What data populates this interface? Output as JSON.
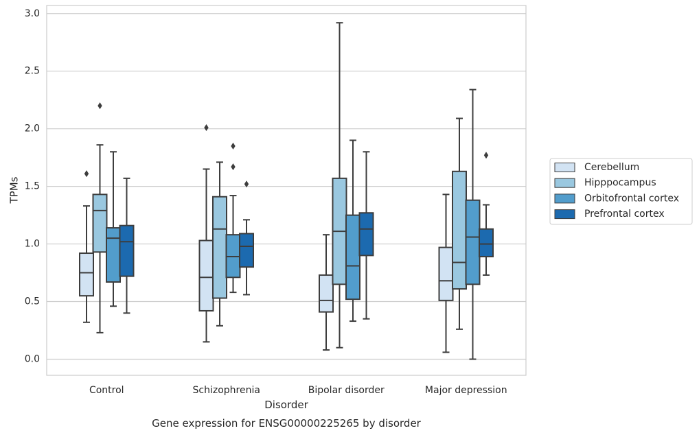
{
  "chart_data": {
    "type": "box",
    "title": "",
    "caption": "Gene expression for ENSG00000225265 by disorder",
    "xlabel": "Disorder",
    "ylabel": "TPMs",
    "ylim": [
      -0.14,
      3.07
    ],
    "yticks": [
      "0.0",
      "0.5",
      "1.0",
      "1.5",
      "2.0",
      "2.5",
      "3.0"
    ],
    "grid": "horizontal",
    "legend_position": "right, outside plot",
    "categories": [
      "Control",
      "Schizophrenia",
      "Bipolar disorder",
      "Major depression"
    ],
    "series": [
      {
        "name": "Cerebellum",
        "color": "#d2e3f3",
        "boxes": [
          {
            "whislo": 0.32,
            "q1": 0.55,
            "med": 0.75,
            "q3": 0.92,
            "whishi": 1.33,
            "fliers": [
              1.61
            ]
          },
          {
            "whislo": 0.15,
            "q1": 0.42,
            "med": 0.71,
            "q3": 1.03,
            "whishi": 1.65,
            "fliers": [
              2.01
            ]
          },
          {
            "whislo": 0.08,
            "q1": 0.41,
            "med": 0.51,
            "q3": 0.73,
            "whishi": 1.08,
            "fliers": []
          },
          {
            "whislo": 0.06,
            "q1": 0.51,
            "med": 0.68,
            "q3": 0.97,
            "whishi": 1.43,
            "fliers": []
          }
        ]
      },
      {
        "name": "Hipppocampus",
        "color": "#9ac8e0",
        "boxes": [
          {
            "whislo": 0.23,
            "q1": 0.93,
            "med": 1.29,
            "q3": 1.43,
            "whishi": 1.86,
            "fliers": [
              2.2
            ]
          },
          {
            "whislo": 0.29,
            "q1": 0.53,
            "med": 1.13,
            "q3": 1.41,
            "whishi": 1.71,
            "fliers": []
          },
          {
            "whislo": 0.1,
            "q1": 0.65,
            "med": 1.11,
            "q3": 1.57,
            "whishi": 2.92,
            "fliers": []
          },
          {
            "whislo": 0.26,
            "q1": 0.61,
            "med": 0.84,
            "q3": 1.63,
            "whishi": 2.09,
            "fliers": []
          }
        ]
      },
      {
        "name": "Orbitofrontal cortex",
        "color": "#529dcc",
        "boxes": [
          {
            "whislo": 0.46,
            "q1": 0.67,
            "med": 1.05,
            "q3": 1.14,
            "whishi": 1.8,
            "fliers": []
          },
          {
            "whislo": 0.58,
            "q1": 0.71,
            "med": 0.89,
            "q3": 1.08,
            "whishi": 1.42,
            "fliers": [
              1.67,
              1.85
            ]
          },
          {
            "whislo": 0.33,
            "q1": 0.52,
            "med": 0.81,
            "q3": 1.25,
            "whishi": 1.9,
            "fliers": []
          },
          {
            "whislo": 0.0,
            "q1": 0.65,
            "med": 1.06,
            "q3": 1.38,
            "whishi": 2.34,
            "fliers": []
          }
        ]
      },
      {
        "name": "Prefrontal cortex",
        "color": "#1c6aaf",
        "boxes": [
          {
            "whislo": 0.4,
            "q1": 0.72,
            "med": 1.02,
            "q3": 1.16,
            "whishi": 1.57,
            "fliers": []
          },
          {
            "whislo": 0.56,
            "q1": 0.8,
            "med": 0.98,
            "q3": 1.09,
            "whishi": 1.21,
            "fliers": [
              1.52
            ]
          },
          {
            "whislo": 0.35,
            "q1": 0.9,
            "med": 1.13,
            "q3": 1.27,
            "whishi": 1.8,
            "fliers": []
          },
          {
            "whislo": 0.73,
            "q1": 0.89,
            "med": 1.0,
            "q3": 1.13,
            "whishi": 1.34,
            "fliers": [
              1.77
            ]
          }
        ]
      }
    ]
  },
  "colors": {
    "grid": "#cccccc",
    "spine": "#cccccc",
    "box_edge": "#3d3d3d",
    "text": "#262626"
  }
}
